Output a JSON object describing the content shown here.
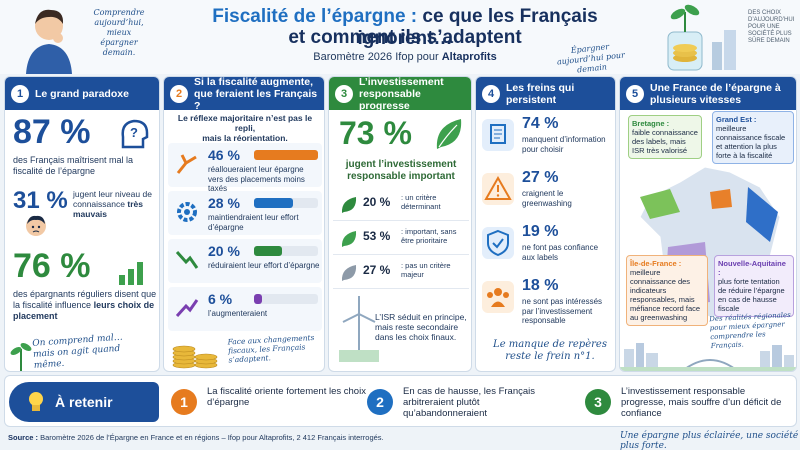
{
  "header": {
    "title_accent": "Fiscalité de l’épargne :",
    "title_rest": " ce que les Français ignorent…",
    "title_line2": "et comment ils s’adaptent",
    "subtitle_prefix": "Baromètre 2026 Ifop pour ",
    "subtitle_brand": "Altaprofits",
    "note_left": "Comprendre aujourd’hui, mieux épargner demain.",
    "note_right": "Épargner aujourd’hui pour demain",
    "note_corner": "DES CHOIX D’AUJOURD’HUI POUR UNE SOCIÉTÉ PLUS SÛRE DEMAIN"
  },
  "col1": {
    "num": "1",
    "title": "Le grand paradoxe",
    "stat1_value": "87 %",
    "stat1_text": "des Français maîtrisent mal la fiscalité de l’épargne",
    "stat2_value": "31 %",
    "stat2_text_a": "jugent leur niveau de connaissance",
    "stat2_text_b": "très mauvais",
    "stat3_value": "76 %",
    "stat3_text_a": "des épargnants réguliers disent que la fiscalité influence",
    "stat3_text_b": "leurs choix de placement",
    "quote": "On comprend mal… mais on agit quand même."
  },
  "col2": {
    "num": "2",
    "title": "Si la fiscalité augmente, que feraient les Français ?",
    "intro_a": "Le réflexe majoritaire n’est pas le repli,",
    "intro_b": "mais la réorientation.",
    "items": [
      {
        "value": "46 %",
        "pct": 46,
        "color": "#e67b1f",
        "text": "réalloueraient leur épargne vers des placements moins taxés"
      },
      {
        "value": "28 %",
        "pct": 28,
        "color": "#1f6fc1",
        "text": "maintiendraient leur effort d’épargne"
      },
      {
        "value": "20 %",
        "pct": 20,
        "color": "#2e8a3e",
        "text": "réduiraient leur effort d’épargne"
      },
      {
        "value": "6 %",
        "pct": 6,
        "color": "#7a3fb0",
        "text": "l’augmenteraient"
      }
    ],
    "note": "Face aux changements fiscaux, les Français s’adaptent."
  },
  "col3": {
    "num": "3",
    "title": "L’investissement responsable progresse",
    "big_value": "73 %",
    "big_text": "jugent l’investissement responsable important",
    "items": [
      {
        "value": "20 %",
        "text": ": un critère déterminant"
      },
      {
        "value": "53 %",
        "text": ": important, sans être prioritaire"
      },
      {
        "value": "27 %",
        "text": ": pas un critère majeur"
      }
    ],
    "foot": "L’ISR séduit en principe, mais reste secondaire dans les choix finaux."
  },
  "col4": {
    "num": "4",
    "title": "Les freins qui persistent",
    "items": [
      {
        "value": "74 %",
        "text": "manquent d’information pour choisir",
        "icon": "document-icon",
        "color": "#1f6fc1"
      },
      {
        "value": "27 %",
        "text": "craignent le greenwashing",
        "icon": "warning-icon",
        "color": "#e67b1f"
      },
      {
        "value": "19 %",
        "text": "ne font pas confiance aux labels",
        "icon": "shield-icon",
        "color": "#1f6fc1"
      },
      {
        "value": "18 %",
        "text": "ne sont pas intéressés par l’investissement responsable",
        "icon": "people-icon",
        "color": "#e67b1f"
      }
    ],
    "note": "Le manque de repères reste le frein n°1."
  },
  "col5": {
    "num": "5",
    "title": "Une France de l’épargne à plusieurs vitesses",
    "regions": [
      {
        "name": "Bretagne :",
        "text": "faible connaissance des labels, mais ISR très valorisé"
      },
      {
        "name": "Grand Est :",
        "text": "meilleure connaissance fiscale et attention la plus forte à la fiscalité"
      },
      {
        "name": "Île-de-France :",
        "text": "meilleure connaissance des indicateurs responsables, mais méfiance record face au greenwashing"
      },
      {
        "name": "Nouvelle-Aquitaine :",
        "text": "plus forte tentation de réduire l’épargne en cas de hausse fiscale"
      }
    ],
    "note": "Des réalités régionales pour mieux épargner comprendre les Français."
  },
  "bottom": {
    "label": "À retenir",
    "items": [
      {
        "num": "1",
        "color": "#e67b1f",
        "text": "La fiscalité oriente fortement les choix d’épargne"
      },
      {
        "num": "2",
        "color": "#1f6fc1",
        "text": "En cas de hausse, les Français arbitreraient plutôt qu’abandonneraient"
      },
      {
        "num": "3",
        "color": "#2e8a3e",
        "text": "L’investissement responsable progresse, mais souffre d’un déficit de confiance"
      }
    ]
  },
  "footer": {
    "source_label": "Source :",
    "source_text": " Baromètre 2026 de l’Épargne en France et en régions – Ifop pour Altaprofits, 2 412 Français interrogés.",
    "tagline": "Une épargne plus éclairée, une société plus forte."
  }
}
